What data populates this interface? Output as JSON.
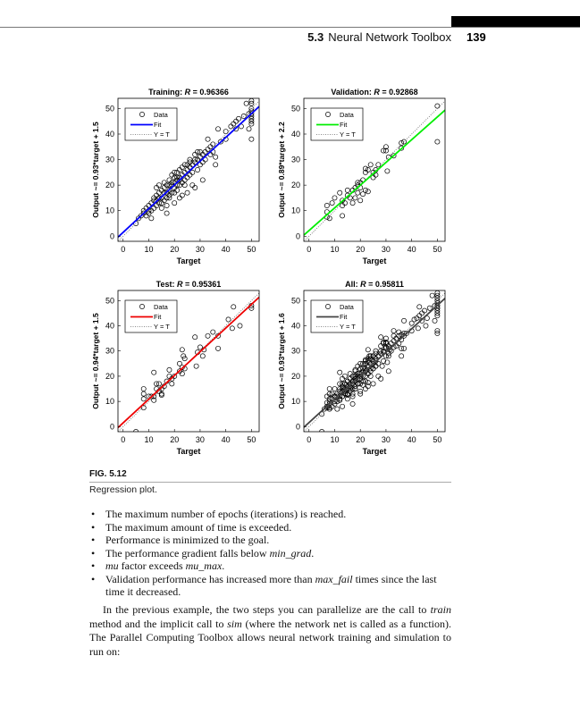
{
  "header": {
    "section": "5.3",
    "title": "Neural Network Toolbox",
    "page_number": "139"
  },
  "figure": {
    "label": "FIG. 5.12",
    "caption": "Regression plot."
  },
  "chart_data": [
    {
      "type": "scatter",
      "title_prefix": "Training:",
      "r_symbol": "R",
      "r_value": "= 0.96366",
      "xlabel": "Target",
      "ylabel": "Output ~= 0.93*target + 1.5",
      "fit": {
        "slope": 0.93,
        "intercept": 1.5,
        "color": "#0000ff"
      },
      "xlim": [
        -2,
        53
      ],
      "ylim": [
        -2,
        54
      ],
      "xticks": [
        0,
        10,
        20,
        30,
        40,
        50
      ],
      "yticks": [
        0,
        10,
        20,
        30,
        40,
        50
      ],
      "legend": {
        "position": "top-left",
        "entries": [
          "Data",
          "Fit",
          "Y = T"
        ]
      },
      "points": [
        [
          5,
          5
        ],
        [
          6,
          7
        ],
        [
          7,
          8
        ],
        [
          8,
          9
        ],
        [
          8,
          10
        ],
        [
          9,
          11
        ],
        [
          9,
          8
        ],
        [
          10,
          12
        ],
        [
          10,
          10
        ],
        [
          11,
          7
        ],
        [
          11,
          13
        ],
        [
          12,
          14
        ],
        [
          12,
          11
        ],
        [
          12,
          15
        ],
        [
          13,
          16
        ],
        [
          13,
          12
        ],
        [
          13,
          19
        ],
        [
          14,
          13
        ],
        [
          14,
          17
        ],
        [
          14,
          20
        ],
        [
          15,
          15
        ],
        [
          15,
          18
        ],
        [
          15,
          11
        ],
        [
          16,
          19
        ],
        [
          16,
          14
        ],
        [
          16,
          21
        ],
        [
          17,
          17
        ],
        [
          17,
          20
        ],
        [
          17,
          12
        ],
        [
          17,
          9
        ],
        [
          18,
          18
        ],
        [
          18,
          22
        ],
        [
          18,
          15
        ],
        [
          19,
          20
        ],
        [
          19,
          17
        ],
        [
          19,
          24
        ],
        [
          20,
          21
        ],
        [
          20,
          19
        ],
        [
          20,
          23
        ],
        [
          20,
          13
        ],
        [
          21,
          22
        ],
        [
          21,
          18
        ],
        [
          21,
          25
        ],
        [
          22,
          23
        ],
        [
          22,
          20
        ],
        [
          22,
          26
        ],
        [
          23,
          24
        ],
        [
          23,
          21
        ],
        [
          23,
          16
        ],
        [
          24,
          25
        ],
        [
          24,
          22
        ],
        [
          24,
          28
        ],
        [
          25,
          26
        ],
        [
          25,
          23
        ],
        [
          26,
          27
        ],
        [
          26,
          24
        ],
        [
          26,
          30
        ],
        [
          27,
          28
        ],
        [
          27,
          20
        ],
        [
          28,
          29
        ],
        [
          28,
          19
        ],
        [
          28,
          32
        ],
        [
          29,
          30
        ],
        [
          29,
          26
        ],
        [
          30,
          31
        ],
        [
          30,
          28
        ],
        [
          30,
          33
        ],
        [
          31,
          32
        ],
        [
          32,
          33
        ],
        [
          32,
          30
        ],
        [
          33,
          34
        ],
        [
          33,
          38
        ],
        [
          34,
          35
        ],
        [
          34,
          32
        ],
        [
          35,
          36
        ],
        [
          35,
          33
        ],
        [
          36,
          28
        ],
        [
          36,
          31
        ],
        [
          37,
          42
        ],
        [
          38,
          37
        ],
        [
          40,
          38
        ],
        [
          40,
          41
        ],
        [
          42,
          43
        ],
        [
          43,
          44
        ],
        [
          44,
          45
        ],
        [
          44,
          42
        ],
        [
          45,
          46
        ],
        [
          46,
          43
        ],
        [
          47,
          47
        ],
        [
          48,
          52
        ],
        [
          49,
          48
        ],
        [
          50,
          50
        ],
        [
          50,
          49
        ],
        [
          50,
          48
        ],
        [
          50,
          47
        ],
        [
          50,
          46
        ],
        [
          50,
          44
        ],
        [
          50,
          45
        ],
        [
          50,
          52
        ],
        [
          50,
          38
        ],
        [
          50,
          53
        ],
        [
          49,
          42
        ],
        [
          31,
          22
        ],
        [
          25,
          17
        ],
        [
          22,
          15
        ],
        [
          18,
          16
        ],
        [
          19,
          21
        ],
        [
          21,
          20
        ],
        [
          16,
          17
        ],
        [
          14,
          15
        ],
        [
          23,
          27
        ],
        [
          24,
          20
        ],
        [
          20,
          17
        ],
        [
          22,
          22
        ],
        [
          26,
          29
        ],
        [
          27,
          25
        ],
        [
          29,
          33
        ],
        [
          31,
          29
        ],
        [
          13,
          14
        ],
        [
          11,
          10
        ],
        [
          10,
          9
        ],
        [
          15,
          13
        ],
        [
          17,
          15
        ],
        [
          18,
          20
        ],
        [
          20,
          25
        ],
        [
          21,
          23
        ],
        [
          25,
          28
        ],
        [
          28,
          30
        ]
      ]
    },
    {
      "type": "scatter",
      "title_prefix": "Validation:",
      "r_symbol": "R",
      "r_value": "= 0.92868",
      "xlabel": "Target",
      "ylabel": "Output ~= 0.89*target + 2.2",
      "fit": {
        "slope": 0.89,
        "intercept": 2.2,
        "color": "#00ee00"
      },
      "xlim": [
        -2,
        53
      ],
      "ylim": [
        -2,
        54
      ],
      "xticks": [
        0,
        10,
        20,
        30,
        40,
        50
      ],
      "yticks": [
        0,
        10,
        20,
        30,
        40,
        50
      ],
      "legend": {
        "position": "top-left",
        "entries": [
          "Data",
          "Fit",
          "Y = T"
        ]
      },
      "points": [
        [
          50,
          51
        ],
        [
          50,
          37
        ],
        [
          36,
          36.5
        ],
        [
          37,
          37
        ],
        [
          36,
          34.5
        ],
        [
          30,
          35
        ],
        [
          29,
          33.5
        ],
        [
          30,
          33.5
        ],
        [
          33,
          31.5
        ],
        [
          31,
          31
        ],
        [
          30.5,
          25.5
        ],
        [
          27,
          28
        ],
        [
          26,
          26
        ],
        [
          25,
          25
        ],
        [
          24,
          28
        ],
        [
          23,
          26
        ],
        [
          22,
          26.5
        ],
        [
          22,
          25
        ],
        [
          21,
          22
        ],
        [
          20,
          21
        ],
        [
          19,
          20
        ],
        [
          20,
          19
        ],
        [
          18,
          19
        ],
        [
          19,
          17
        ],
        [
          18,
          15
        ],
        [
          20,
          14
        ],
        [
          17,
          13
        ],
        [
          22,
          18
        ],
        [
          23,
          17.5
        ],
        [
          21,
          16.5
        ],
        [
          15,
          16
        ],
        [
          14,
          13
        ],
        [
          13,
          12
        ],
        [
          13,
          14
        ],
        [
          12,
          17
        ],
        [
          10,
          15
        ],
        [
          9,
          13
        ],
        [
          7,
          12
        ],
        [
          7,
          9.5
        ],
        [
          8,
          7
        ],
        [
          7,
          7.5
        ],
        [
          13,
          8
        ],
        [
          16,
          15
        ],
        [
          17,
          18
        ],
        [
          19,
          21
        ],
        [
          25,
          23
        ],
        [
          26,
          24
        ],
        [
          15,
          18
        ]
      ]
    },
    {
      "type": "scatter",
      "title_prefix": "Test:",
      "r_symbol": "R",
      "r_value": "= 0.95361",
      "xlabel": "Target",
      "ylabel": "Output ~= 0.94*target + 1.5",
      "fit": {
        "slope": 0.94,
        "intercept": 1.5,
        "color": "#ee0000"
      },
      "xlim": [
        -2,
        53
      ],
      "ylim": [
        -2,
        54
      ],
      "xticks": [
        0,
        10,
        20,
        30,
        40,
        50
      ],
      "yticks": [
        0,
        10,
        20,
        30,
        40,
        50
      ],
      "legend": {
        "position": "top-left",
        "entries": [
          "Data",
          "Fit",
          "Y = T"
        ]
      },
      "points": [
        [
          50,
          47
        ],
        [
          50,
          48
        ],
        [
          43,
          47.5
        ],
        [
          41,
          42.5
        ],
        [
          42.5,
          39
        ],
        [
          45.5,
          40
        ],
        [
          37,
          36
        ],
        [
          37,
          31
        ],
        [
          35,
          37.5
        ],
        [
          33,
          36
        ],
        [
          28,
          35.5
        ],
        [
          28.5,
          24
        ],
        [
          29,
          29.5
        ],
        [
          30,
          31.5
        ],
        [
          31,
          28
        ],
        [
          31.5,
          30.5
        ],
        [
          23,
          30.5
        ],
        [
          23.5,
          28
        ],
        [
          24,
          27
        ],
        [
          22,
          25
        ],
        [
          23,
          23.5
        ],
        [
          24,
          23
        ],
        [
          22,
          22
        ],
        [
          23,
          21
        ],
        [
          20,
          20
        ],
        [
          19,
          19
        ],
        [
          18,
          22.5
        ],
        [
          18,
          20
        ],
        [
          19,
          17
        ],
        [
          17,
          18
        ],
        [
          16,
          16
        ],
        [
          15,
          15
        ],
        [
          14,
          14
        ],
        [
          13,
          17
        ],
        [
          12,
          21.5
        ],
        [
          13,
          15
        ],
        [
          12,
          12
        ],
        [
          11,
          12
        ],
        [
          12,
          10.5
        ],
        [
          10,
          12
        ],
        [
          8,
          15
        ],
        [
          8,
          13
        ],
        [
          8,
          11
        ],
        [
          8,
          7.5
        ],
        [
          15,
          13
        ],
        [
          15,
          12.5
        ],
        [
          5,
          -2
        ],
        [
          14,
          17
        ]
      ]
    },
    {
      "type": "scatter",
      "title_prefix": "All:",
      "r_symbol": "R",
      "r_value": "= 0.95811",
      "xlabel": "Target",
      "ylabel": "Output ~= 0.93*target + 1.6",
      "fit": {
        "slope": 0.93,
        "intercept": 1.6,
        "color": "#444444"
      },
      "xlim": [
        -2,
        53
      ],
      "ylim": [
        -2,
        54
      ],
      "xticks": [
        0,
        10,
        20,
        30,
        40,
        50
      ],
      "yticks": [
        0,
        10,
        20,
        30,
        40,
        50
      ],
      "legend": {
        "position": "top-left",
        "entries": [
          "Data",
          "Fit",
          "Y = T"
        ]
      },
      "points_note": "union of training, validation and test points"
    }
  ],
  "bullets": [
    {
      "parts": [
        "The maximum number of epochs (iterations) is reached."
      ]
    },
    {
      "parts": [
        "The maximum amount of time is exceeded."
      ]
    },
    {
      "parts": [
        "Performance is minimized to the goal."
      ]
    },
    {
      "parts": [
        "The performance gradient falls below ",
        "min_grad",
        "."
      ]
    },
    {
      "parts": [
        "mu",
        " factor exceeds ",
        "mu_max",
        "."
      ]
    },
    {
      "parts": [
        "Validation performance has increased more than ",
        "max_fail",
        " times since the last time it decreased."
      ]
    }
  ],
  "bullet_symbol": "•",
  "paragraph": {
    "parts": [
      "In the previous example, the two steps you can parallelize are the call to ",
      "train",
      " method and the implicit call to ",
      "sim",
      " (where the network net is called as a function). The Parallel Computing Toolbox allows neural network training and simulation to run on:"
    ]
  }
}
